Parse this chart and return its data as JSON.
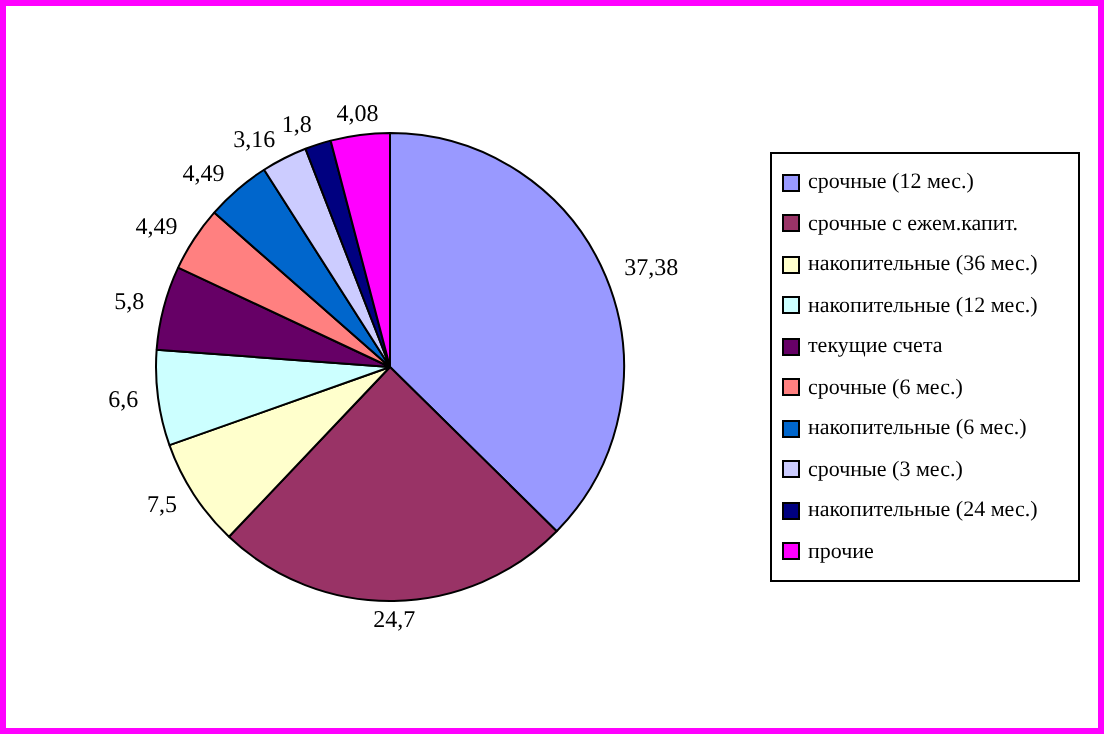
{
  "chart_data": {
    "type": "pie",
    "categories": [
      "срочные (12 мес.)",
      "срочные с ежем.капит.",
      "накопительные (36 мес.)",
      "накопительные (12 мес.)",
      "текущие счета",
      "срочные (6 мес.)",
      "накопительные (6 мес.)",
      "срочные (3 мес.)",
      "накопительные (24 мес.)",
      "прочие"
    ],
    "values": [
      37.38,
      24.7,
      7.5,
      6.6,
      5.8,
      4.49,
      4.49,
      3.16,
      1.8,
      4.08
    ],
    "value_labels": [
      "37,38",
      "24,7",
      "7,5",
      "6,6",
      "5,8",
      "4,49",
      "4,49",
      "3,16",
      "1,8",
      "4,08"
    ],
    "colors": [
      "#9999ff",
      "#993366",
      "#ffffcc",
      "#ccffff",
      "#660066",
      "#ff8080",
      "#0066cc",
      "#ccccff",
      "#000080",
      "#ff00ff"
    ],
    "legend": "right"
  }
}
